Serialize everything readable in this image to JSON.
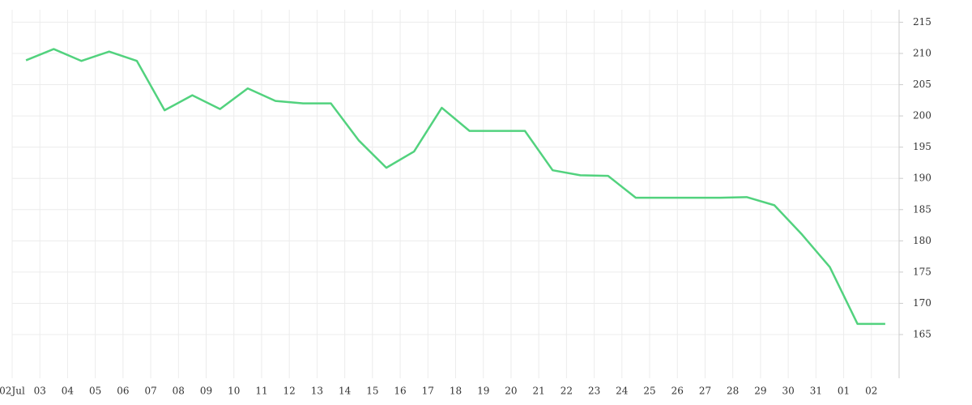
{
  "chart_data": {
    "type": "line",
    "categories": [
      "02Jul",
      "03",
      "04",
      "05",
      "06",
      "07",
      "08",
      "09",
      "10",
      "11",
      "12",
      "13",
      "14",
      "15",
      "16",
      "17",
      "18",
      "19",
      "20",
      "21",
      "22",
      "23",
      "24",
      "25",
      "26",
      "27",
      "28",
      "29",
      "30",
      "31",
      "01",
      "02"
    ],
    "series": [
      {
        "color": "#52d27e",
        "values": [
          208.9,
          210.7,
          208.8,
          210.3,
          208.8,
          200.9,
          203.3,
          201.1,
          204.4,
          202.4,
          202.0,
          202.0,
          196.1,
          191.7,
          194.3,
          201.3,
          197.6,
          197.6,
          197.6,
          191.3,
          190.5,
          190.4,
          186.9,
          186.9,
          186.9,
          186.9,
          187.0,
          185.7,
          181.0,
          175.8,
          166.7,
          166.7
        ]
      }
    ],
    "ylim": [
      158,
      217
    ],
    "yticks": [
      165,
      170,
      175,
      180,
      185,
      190,
      195,
      200,
      205,
      210,
      215
    ],
    "grid": true
  }
}
